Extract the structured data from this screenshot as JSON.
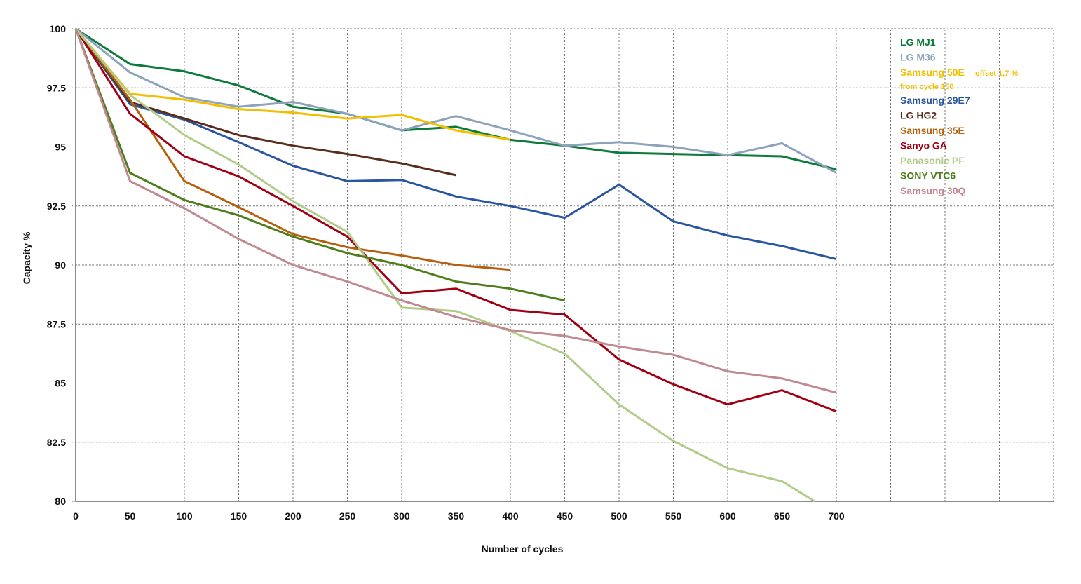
{
  "chart_data": {
    "type": "line",
    "title": "",
    "xlabel": "Number of cycles",
    "ylabel": "Capacity %",
    "xlim": [
      0,
      900
    ],
    "ylim": [
      80,
      100
    ],
    "grid": true,
    "legend_position": "top-right",
    "x_ticks": [
      0,
      50,
      100,
      150,
      200,
      250,
      300,
      350,
      400,
      450,
      500,
      550,
      600,
      650,
      700
    ],
    "y_ticks": [
      80,
      82.5,
      85,
      87.5,
      90,
      92.5,
      95,
      97.5,
      100
    ],
    "y_tick_labels": [
      "80",
      "82.5",
      "85",
      "87.5",
      "90",
      "92.5",
      "95",
      "97.5",
      "100"
    ],
    "series": [
      {
        "name": "LG MJ1",
        "color": "#0b7a3a",
        "x": [
          0,
          50,
          100,
          150,
          200,
          250,
          300,
          350,
          400,
          450,
          500,
          550,
          600,
          650,
          700
        ],
        "values": [
          100,
          98.5,
          98.2,
          97.6,
          96.7,
          96.4,
          95.7,
          95.85,
          95.3,
          95.05,
          94.75,
          94.7,
          94.65,
          94.6,
          94.05
        ]
      },
      {
        "name": "LG M36",
        "color": "#8ea3bb",
        "x": [
          0,
          50,
          100,
          150,
          200,
          250,
          300,
          350,
          400,
          450,
          500,
          550,
          600,
          650,
          700
        ],
        "values": [
          100,
          98.15,
          97.1,
          96.7,
          96.9,
          96.4,
          95.7,
          96.3,
          95.7,
          95.05,
          95.2,
          95.0,
          94.65,
          95.15,
          93.9
        ]
      },
      {
        "name": "Samsung 50E",
        "color": "#f0c000",
        "note": "offset 1,7 %",
        "note2": "from cycle 150",
        "x": [
          0,
          50,
          100,
          150,
          200,
          250,
          300,
          350,
          400
        ],
        "values": [
          100,
          97.25,
          97.0,
          96.6,
          96.45,
          96.2,
          96.35,
          95.7,
          95.3
        ]
      },
      {
        "name": "Samsung 29E7",
        "color": "#2a56a0",
        "x": [
          0,
          50,
          100,
          150,
          200,
          250,
          300,
          350,
          400,
          450,
          500,
          550,
          600,
          650,
          700
        ],
        "values": [
          100,
          96.8,
          96.15,
          95.2,
          94.2,
          93.55,
          93.6,
          92.9,
          92.5,
          92.0,
          93.4,
          91.85,
          91.25,
          90.8,
          90.25
        ]
      },
      {
        "name": "LG HG2",
        "color": "#5a2e1e",
        "x": [
          0,
          50,
          100,
          150,
          200,
          250,
          300,
          350
        ],
        "values": [
          100,
          96.9,
          96.2,
          95.5,
          95.05,
          94.7,
          94.3,
          93.8
        ]
      },
      {
        "name": "Samsung 35E",
        "color": "#b5600e",
        "x": [
          0,
          50,
          100,
          150,
          200,
          250,
          300,
          350,
          400
        ],
        "values": [
          100,
          97.0,
          93.55,
          92.45,
          91.3,
          90.75,
          90.4,
          90.0,
          89.8
        ]
      },
      {
        "name": "Sanyo GA",
        "color": "#a00012",
        "x": [
          0,
          50,
          100,
          150,
          200,
          250,
          300,
          350,
          400,
          450,
          500,
          550,
          600,
          650,
          700
        ],
        "values": [
          100,
          96.4,
          94.6,
          93.75,
          92.5,
          91.2,
          88.8,
          89.0,
          88.1,
          87.9,
          86.0,
          84.95,
          84.1,
          84.7,
          83.8
        ]
      },
      {
        "name": "Panasonic PF",
        "color": "#b3cb88",
        "x": [
          0,
          50,
          100,
          150,
          200,
          250,
          300,
          350,
          400,
          450,
          500,
          550,
          600,
          650,
          680
        ],
        "values": [
          100,
          97.2,
          95.5,
          94.25,
          92.7,
          91.4,
          88.2,
          88.05,
          87.2,
          86.25,
          84.1,
          82.55,
          81.4,
          80.85,
          80.0
        ]
      },
      {
        "name": "SONY VTC6",
        "color": "#4e7d1c",
        "x": [
          0,
          50,
          100,
          150,
          200,
          250,
          300,
          350,
          400,
          450
        ],
        "values": [
          100,
          93.9,
          92.75,
          92.1,
          91.2,
          90.5,
          90.0,
          89.3,
          89.0,
          88.5
        ]
      },
      {
        "name": "Samsung 30Q",
        "color": "#c08890",
        "x": [
          0,
          50,
          100,
          150,
          200,
          250,
          300,
          350,
          400,
          450,
          500,
          550,
          600,
          650,
          700
        ],
        "values": [
          100,
          93.55,
          92.4,
          91.1,
          90.0,
          89.3,
          88.5,
          87.8,
          87.25,
          87.0,
          86.55,
          86.2,
          85.5,
          85.2,
          84.6
        ]
      }
    ]
  }
}
